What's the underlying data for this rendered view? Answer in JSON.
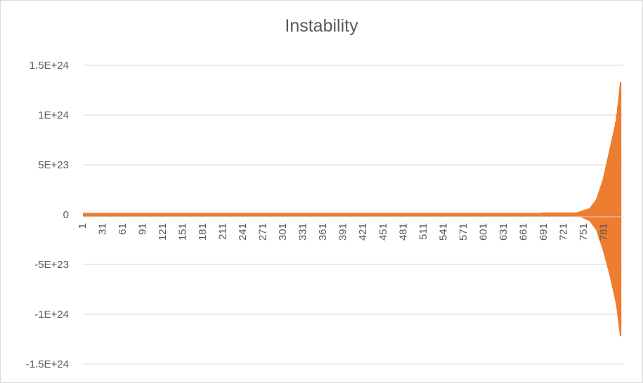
{
  "chart_data": {
    "type": "line",
    "title": "Instability",
    "xlabel": "",
    "ylabel": "",
    "x_range": [
      1,
      810
    ],
    "ylim": [
      -1.5e+24,
      1.5e+24
    ],
    "y_ticks": [
      1.5e+24,
      1e+24,
      5e+23,
      0,
      -5e+23,
      -1e+24,
      -1.5e+24
    ],
    "y_tick_labels": [
      "1.5E+24",
      "1E+24",
      "5E+23",
      "0",
      "-5E+23",
      "-1E+24",
      "-1.5E+24"
    ],
    "x_tick_labels": [
      "1",
      "31",
      "61",
      "91",
      "121",
      "151",
      "181",
      "211",
      "241",
      "271",
      "301",
      "331",
      "361",
      "391",
      "421",
      "451",
      "481",
      "511",
      "541",
      "571",
      "601",
      "631",
      "661",
      "691",
      "721",
      "751",
      "781"
    ],
    "grid": true,
    "legend": "none",
    "series": [
      {
        "color": "#ed7d31",
        "description_points": [
          {
            "x": 1,
            "y": 0
          },
          {
            "x": 680,
            "y": 0
          },
          {
            "x": 690,
            "y": 1.5e+22
          },
          {
            "x": 740,
            "y": 1.5e+22
          },
          {
            "x": 760,
            "y": 6e+22
          },
          {
            "x": 770,
            "y": 1.5e+23
          },
          {
            "x": 780,
            "y": 3.5e+23
          },
          {
            "x": 790,
            "y": 6.5e+23
          },
          {
            "x": 800,
            "y": 9.5e+23
          },
          {
            "x": 806,
            "y": 1.33e+24
          }
        ],
        "lower_envelope": [
          {
            "x": 1,
            "y": 0
          },
          {
            "x": 740,
            "y": 0
          },
          {
            "x": 760,
            "y": -6e+22
          },
          {
            "x": 770,
            "y": -1.5e+23
          },
          {
            "x": 780,
            "y": -3.5e+23
          },
          {
            "x": 790,
            "y": -6e+23
          },
          {
            "x": 800,
            "y": -9e+23
          },
          {
            "x": 806,
            "y": -1.22e+24
          }
        ]
      }
    ]
  }
}
